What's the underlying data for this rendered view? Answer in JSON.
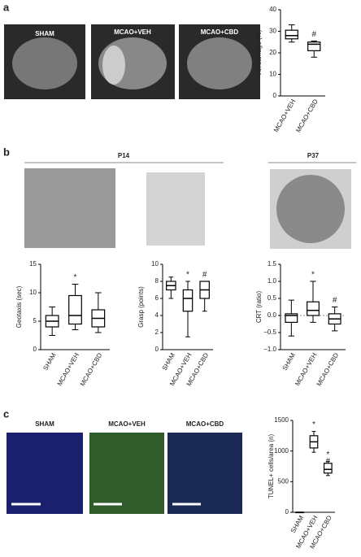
{
  "panel_labels": [
    "a",
    "b",
    "c"
  ],
  "panel_a": {
    "images": [
      "SHAM",
      "MCAO+VEH",
      "MCAO+CBD"
    ]
  },
  "panel_b": {
    "groups": [
      "P14",
      "P37"
    ]
  },
  "panel_c": {
    "images": [
      "SHAM",
      "MCAO+VEH",
      "MCAO+CBD"
    ]
  },
  "chart_data": [
    {
      "type": "box",
      "y_label": "Vol.damage (%)",
      "categories": [
        "MCAO+VEH",
        "MCAO+CBD"
      ],
      "boxes": [
        {
          "min": 25,
          "q1": 26.5,
          "median": 28,
          "q3": 30.5,
          "max": 33
        },
        {
          "min": 18,
          "q1": 21,
          "median": 24,
          "q3": 25,
          "max": 25.5
        }
      ],
      "ylim": [
        0,
        40
      ],
      "yticks": [
        0,
        10,
        20,
        30,
        40
      ],
      "annotations": [
        {
          "text": "#",
          "category": "MCAO+CBD"
        }
      ]
    },
    {
      "type": "box",
      "y_label": "Geotaxis (sec)",
      "categories": [
        "SHAM",
        "MCAO+VEH",
        "MCAO+CBD"
      ],
      "boxes": [
        {
          "min": 2.5,
          "q1": 4,
          "median": 5,
          "q3": 6,
          "max": 7.5
        },
        {
          "min": 3.5,
          "q1": 4.5,
          "median": 6,
          "q3": 9.5,
          "max": 11.5
        },
        {
          "min": 3,
          "q1": 4,
          "median": 5.5,
          "q3": 7,
          "max": 10
        }
      ],
      "ylim": [
        0,
        15
      ],
      "yticks": [
        0,
        5,
        10,
        15
      ],
      "annotations": [
        {
          "text": "*",
          "category": "MCAO+VEH"
        }
      ]
    },
    {
      "type": "box",
      "y_label": "Grasp (points)",
      "categories": [
        "SHAM",
        "MCAO+VEH",
        "MCAO+CBD"
      ],
      "boxes": [
        {
          "min": 6,
          "q1": 7,
          "median": 7.5,
          "q3": 8,
          "max": 8.5
        },
        {
          "min": 1.5,
          "q1": 4.5,
          "median": 6,
          "q3": 7,
          "max": 8
        },
        {
          "min": 4.5,
          "q1": 6,
          "median": 7,
          "q3": 8,
          "max": 8
        }
      ],
      "ylim": [
        0,
        10
      ],
      "yticks": [
        0,
        2,
        4,
        6,
        8,
        10
      ],
      "annotations": [
        {
          "text": "*",
          "category": "MCAO+VEH"
        },
        {
          "text": "#",
          "category": "MCAO+CBD"
        }
      ]
    },
    {
      "type": "box",
      "y_label": "CRT (ratio)",
      "categories": [
        "SHAM",
        "MCAO+VEH",
        "MCAO+CBD"
      ],
      "boxes": [
        {
          "min": -0.6,
          "q1": -0.2,
          "median": 0,
          "q3": 0.05,
          "max": 0.45
        },
        {
          "min": -0.2,
          "q1": 0,
          "median": 0.15,
          "q3": 0.4,
          "max": 1.0
        },
        {
          "min": -0.45,
          "q1": -0.25,
          "median": -0.1,
          "q3": 0.05,
          "max": 0.25
        }
      ],
      "ylim": [
        -1,
        1.5
      ],
      "yticks": [
        {
          "value": -1,
          "label": "−1.0"
        },
        {
          "value": -0.5,
          "label": "−0.5"
        },
        {
          "value": 0,
          "label": "0.0"
        },
        {
          "value": 0.5,
          "label": "0.5"
        },
        {
          "value": 1,
          "label": "1.0"
        },
        {
          "value": 1.5,
          "label": "1.5"
        }
      ],
      "annotations": [
        {
          "text": "*",
          "category": "MCAO+VEH"
        },
        {
          "text": "#",
          "category": "MCAO+CBD"
        }
      ]
    },
    {
      "type": "box",
      "y_label": "TUNEL+ cells/area (n)",
      "categories": [
        "SHAM",
        "MCAO+VEH",
        "MCAO+CBD"
      ],
      "boxes": [
        {
          "min": 0,
          "q1": 0,
          "median": 0,
          "q3": 0,
          "max": 0
        },
        {
          "min": 980,
          "q1": 1050,
          "median": 1150,
          "q3": 1250,
          "max": 1320
        },
        {
          "min": 600,
          "q1": 640,
          "median": 700,
          "q3": 800,
          "max": 830
        }
      ],
      "ylim": [
        0,
        1500
      ],
      "yticks": [
        0,
        500,
        1000,
        1500
      ],
      "annotations": [
        {
          "text": "*",
          "category": "MCAO+VEH"
        },
        {
          "text": "*",
          "category": "MCAO+CBD"
        },
        {
          "text": "#",
          "category": "MCAO+CBD"
        }
      ]
    }
  ]
}
